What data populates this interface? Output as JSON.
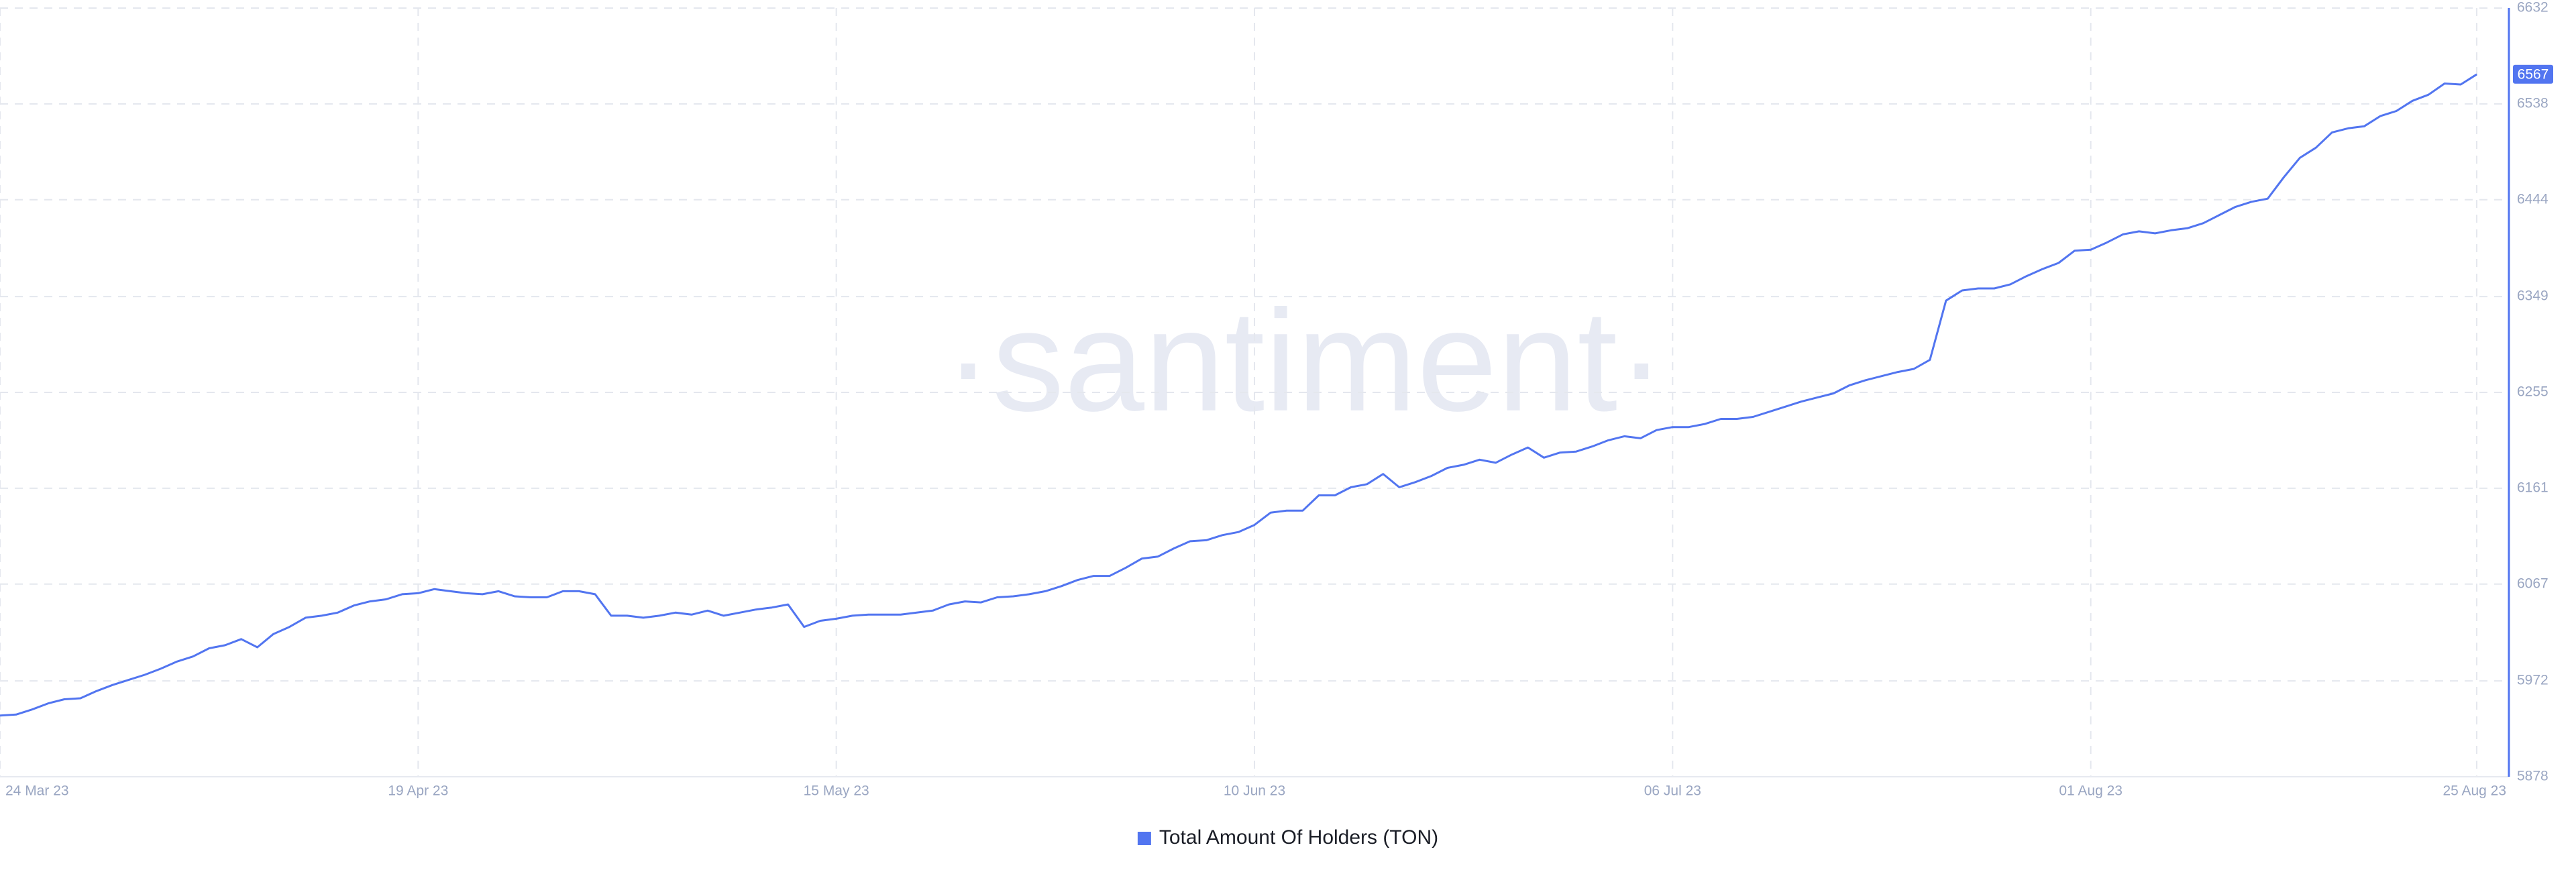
{
  "chart_data": {
    "type": "line",
    "watermark": "·santiment·",
    "x": [
      "2023-03-24",
      "2023-03-25",
      "2023-03-26",
      "2023-03-27",
      "2023-03-28",
      "2023-03-29",
      "2023-03-30",
      "2023-03-31",
      "2023-04-01",
      "2023-04-02",
      "2023-04-03",
      "2023-04-04",
      "2023-04-05",
      "2023-04-06",
      "2023-04-07",
      "2023-04-08",
      "2023-04-09",
      "2023-04-10",
      "2023-04-11",
      "2023-04-12",
      "2023-04-13",
      "2023-04-14",
      "2023-04-15",
      "2023-04-16",
      "2023-04-17",
      "2023-04-18",
      "2023-04-19",
      "2023-04-20",
      "2023-04-21",
      "2023-04-22",
      "2023-04-23",
      "2023-04-24",
      "2023-04-25",
      "2023-04-26",
      "2023-04-27",
      "2023-04-28",
      "2023-04-29",
      "2023-04-30",
      "2023-05-01",
      "2023-05-02",
      "2023-05-03",
      "2023-05-04",
      "2023-05-05",
      "2023-05-06",
      "2023-05-07",
      "2023-05-08",
      "2023-05-09",
      "2023-05-10",
      "2023-05-11",
      "2023-05-12",
      "2023-05-13",
      "2023-05-14",
      "2023-05-15",
      "2023-05-16",
      "2023-05-17",
      "2023-05-18",
      "2023-05-19",
      "2023-05-20",
      "2023-05-21",
      "2023-05-22",
      "2023-05-23",
      "2023-05-24",
      "2023-05-25",
      "2023-05-26",
      "2023-05-27",
      "2023-05-28",
      "2023-05-29",
      "2023-05-30",
      "2023-05-31",
      "2023-06-01",
      "2023-06-02",
      "2023-06-03",
      "2023-06-04",
      "2023-06-05",
      "2023-06-06",
      "2023-06-07",
      "2023-06-08",
      "2023-06-09",
      "2023-06-10",
      "2023-06-11",
      "2023-06-12",
      "2023-06-13",
      "2023-06-14",
      "2023-06-15",
      "2023-06-16",
      "2023-06-17",
      "2023-06-18",
      "2023-06-19",
      "2023-06-20",
      "2023-06-21",
      "2023-06-22",
      "2023-06-23",
      "2023-06-24",
      "2023-06-25",
      "2023-06-26",
      "2023-06-27",
      "2023-06-28",
      "2023-06-29",
      "2023-06-30",
      "2023-07-01",
      "2023-07-02",
      "2023-07-03",
      "2023-07-04",
      "2023-07-05",
      "2023-07-06",
      "2023-07-07",
      "2023-07-08",
      "2023-07-09",
      "2023-07-10",
      "2023-07-11",
      "2023-07-12",
      "2023-07-13",
      "2023-07-14",
      "2023-07-15",
      "2023-07-16",
      "2023-07-17",
      "2023-07-18",
      "2023-07-19",
      "2023-07-20",
      "2023-07-21",
      "2023-07-22",
      "2023-07-23",
      "2023-07-24",
      "2023-07-25",
      "2023-07-26",
      "2023-07-27",
      "2023-07-28",
      "2023-07-29",
      "2023-07-30",
      "2023-07-31",
      "2023-08-01",
      "2023-08-02",
      "2023-08-03",
      "2023-08-04",
      "2023-08-05",
      "2023-08-06",
      "2023-08-07",
      "2023-08-08",
      "2023-08-09",
      "2023-08-10",
      "2023-08-11",
      "2023-08-12",
      "2023-08-13",
      "2023-08-14",
      "2023-08-15",
      "2023-08-16",
      "2023-08-17",
      "2023-08-18",
      "2023-08-19",
      "2023-08-20",
      "2023-08-21",
      "2023-08-22",
      "2023-08-23",
      "2023-08-24",
      "2023-08-25"
    ],
    "series": [
      {
        "name": "Total Amount Of Holders (TON)",
        "color": "#5275f0",
        "values": [
          5938,
          5939,
          5944,
          5950,
          5954,
          5955,
          5962,
          5968,
          5973,
          5978,
          5984,
          5991,
          5996,
          6004,
          6007,
          6013,
          6005,
          6018,
          6025,
          6034,
          6036,
          6039,
          6046,
          6050,
          6052,
          6057,
          6058,
          6062,
          6060,
          6058,
          6057,
          6060,
          6055,
          6054,
          6054,
          6060,
          6060,
          6057,
          6036,
          6036,
          6034,
          6036,
          6039,
          6037,
          6041,
          6036,
          6039,
          6042,
          6044,
          6047,
          6025,
          6031,
          6033,
          6036,
          6037,
          6037,
          6037,
          6039,
          6041,
          6047,
          6050,
          6049,
          6054,
          6055,
          6057,
          6060,
          6065,
          6071,
          6075,
          6075,
          6083,
          6092,
          6094,
          6102,
          6109,
          6110,
          6115,
          6118,
          6125,
          6137,
          6139,
          6139,
          6154,
          6154,
          6162,
          6165,
          6175,
          6162,
          6167,
          6173,
          6181,
          6184,
          6189,
          6186,
          6194,
          6201,
          6191,
          6196,
          6197,
          6202,
          6208,
          6212,
          6210,
          6218,
          6221,
          6221,
          6224,
          6229,
          6229,
          6231,
          6236,
          6241,
          6246,
          6250,
          6254,
          6262,
          6267,
          6271,
          6275,
          6278,
          6287,
          6345,
          6355,
          6357,
          6357,
          6361,
          6369,
          6376,
          6382,
          6394,
          6395,
          6402,
          6410,
          6413,
          6411,
          6414,
          6416,
          6421,
          6429,
          6437,
          6442,
          6445,
          6466,
          6485,
          6495,
          6510,
          6514,
          6516,
          6526,
          6531,
          6541,
          6547,
          6558,
          6557,
          6567
        ]
      }
    ],
    "xlim": [
      "2023-03-24",
      "2023-08-27"
    ],
    "xticks": [
      {
        "value": "2023-03-24",
        "label": "24 Mar 23"
      },
      {
        "value": "2023-04-19",
        "label": "19 Apr 23"
      },
      {
        "value": "2023-05-15",
        "label": "15 May 23"
      },
      {
        "value": "2023-06-10",
        "label": "10 Jun 23"
      },
      {
        "value": "2023-07-06",
        "label": "06 Jul 23"
      },
      {
        "value": "2023-08-01",
        "label": "01 Aug 23"
      },
      {
        "value": "2023-08-25",
        "label": "25 Aug 23"
      }
    ],
    "ylim": [
      5878,
      6632
    ],
    "yticks": [
      5878,
      5972,
      6067,
      6161,
      6255,
      6349,
      6444,
      6538,
      6632
    ],
    "grid": true
  }
}
